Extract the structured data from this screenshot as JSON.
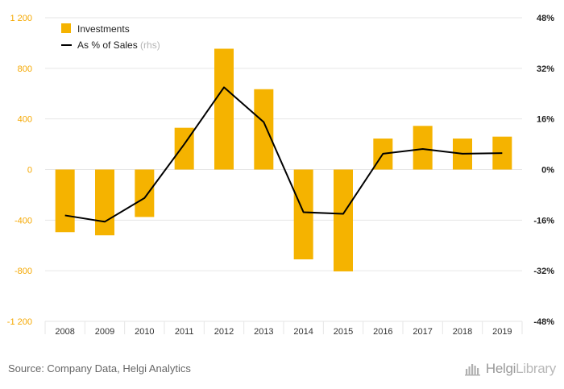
{
  "chart_data": {
    "type": "bar",
    "categories": [
      "2008",
      "2009",
      "2010",
      "2011",
      "2012",
      "2013",
      "2014",
      "2015",
      "2016",
      "2017",
      "2018",
      "2019"
    ],
    "series": [
      {
        "name": "Investments",
        "axis": "left",
        "kind": "bar",
        "values": [
          -495,
          -520,
          -375,
          330,
          955,
          635,
          -710,
          -805,
          245,
          345,
          245,
          260
        ]
      },
      {
        "name": "As % of Sales",
        "axis": "right",
        "kind": "line",
        "values": [
          -14.5,
          -16.5,
          -9.0,
          8.0,
          26.0,
          15.0,
          -13.5,
          -14.0,
          5.0,
          6.5,
          5.0,
          5.2
        ]
      }
    ],
    "y_left": {
      "ylim": [
        -1200,
        1200
      ],
      "ticks": [
        -1200,
        -800,
        -400,
        0,
        400,
        800,
        1200
      ],
      "tick_labels": [
        "-1 200",
        "-800",
        "-400",
        "0",
        "400",
        "800",
        "1 200"
      ]
    },
    "y_right": {
      "ylim": [
        -48,
        48
      ],
      "ticks": [
        -48,
        -32,
        -16,
        0,
        16,
        32,
        48
      ],
      "tick_labels": [
        "-48%",
        "-32%",
        "-16%",
        "0%",
        "16%",
        "32%",
        "48%"
      ]
    },
    "legend": {
      "position": "top-left",
      "items": [
        {
          "label": "Investments",
          "suffix": ""
        },
        {
          "label": "As % of Sales",
          "suffix": "(rhs)"
        }
      ]
    },
    "grid": true
  },
  "footer": {
    "source": "Source: Company Data, Helgi Analytics",
    "brand_part1": "Helgi",
    "brand_part2": "Library"
  },
  "colors": {
    "bar": "#f5b300",
    "line": "#000000",
    "left_axis_text": "#f5a800",
    "right_axis_text": "#222222",
    "grid": "#e6e6e6",
    "category_text": "#333333"
  },
  "icons": {
    "brand": "helgi-library-logo-icon"
  }
}
